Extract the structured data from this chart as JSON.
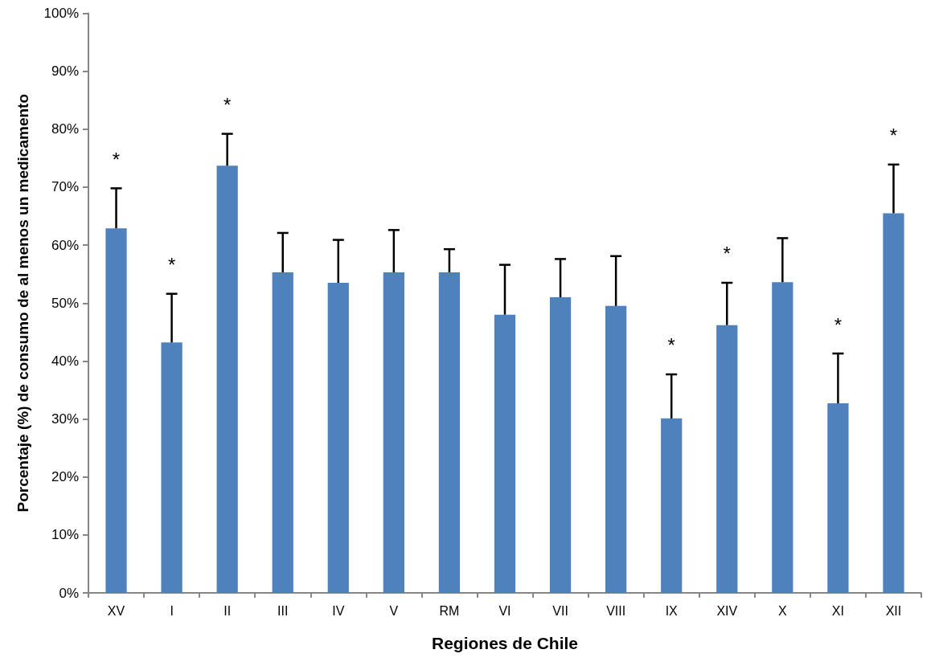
{
  "chart_data": {
    "type": "bar",
    "xlabel": "Regiones de Chile",
    "ylabel": "Porcentaje (%) de consumo de al menos un medicamento",
    "categories": [
      "XV",
      "I",
      "II",
      "III",
      "IV",
      "V",
      "RM",
      "VI",
      "VII",
      "VIII",
      "IX",
      "XIV",
      "X",
      "XI",
      "XII"
    ],
    "values": [
      62.9,
      43.2,
      73.7,
      55.3,
      53.5,
      55.3,
      55.3,
      48.0,
      51.0,
      49.5,
      30.1,
      46.2,
      53.6,
      32.7,
      65.5
    ],
    "errors": [
      [
        62.9,
        69.8
      ],
      [
        43.2,
        51.6
      ],
      [
        73.7,
        79.2
      ],
      [
        55.3,
        62.1
      ],
      [
        53.5,
        60.9
      ],
      [
        55.3,
        62.6
      ],
      [
        55.3,
        59.3
      ],
      [
        48.0,
        56.6
      ],
      [
        51.0,
        57.6
      ],
      [
        49.5,
        58.1
      ],
      [
        30.1,
        37.7
      ],
      [
        46.2,
        53.5
      ],
      [
        53.6,
        61.2
      ],
      [
        32.7,
        41.3
      ],
      [
        65.5,
        73.9
      ]
    ],
    "color": "#4f81bd",
    "ylim": [
      0,
      100
    ],
    "yticks": [
      {
        "value": 0,
        "label": "0%"
      },
      {
        "value": 10,
        "label": "10%"
      },
      {
        "value": 20,
        "label": "20%"
      },
      {
        "value": 30,
        "label": "30%"
      },
      {
        "value": 40,
        "label": "40%"
      },
      {
        "value": 50,
        "label": "50%"
      },
      {
        "value": 60,
        "label": "60%"
      },
      {
        "value": 70,
        "label": "70%"
      },
      {
        "value": 80,
        "label": "80%"
      },
      {
        "value": 90,
        "label": "90%"
      },
      {
        "value": 100,
        "label": "100%"
      }
    ],
    "grid": false,
    "annotations": [
      {
        "text": "*",
        "x": "XV",
        "y": 69.8
      },
      {
        "text": "*",
        "x": "I",
        "y": 51.6
      },
      {
        "text": "*",
        "x": "II",
        "y": 79.2
      },
      {
        "text": "*",
        "x": "IX",
        "y": 37.7
      },
      {
        "text": "*",
        "x": "XIV",
        "y": 53.5
      },
      {
        "text": "*",
        "x": "XI",
        "y": 41.3
      },
      {
        "text": "*",
        "x": "XII",
        "y": 73.9
      }
    ]
  }
}
